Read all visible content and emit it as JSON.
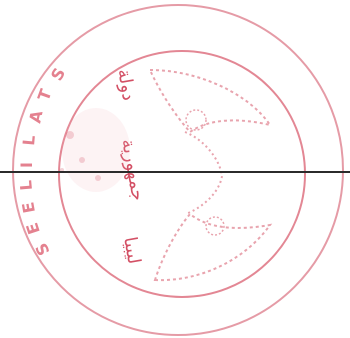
{
  "stamp": {
    "outer_ring_text": "S T A L I L E E S",
    "inner_arabic_text": "دولة جمهورية ليبيا",
    "ink_color": "#d24a5c",
    "line_color": "#2b2b2b",
    "background": "#ffffff"
  }
}
